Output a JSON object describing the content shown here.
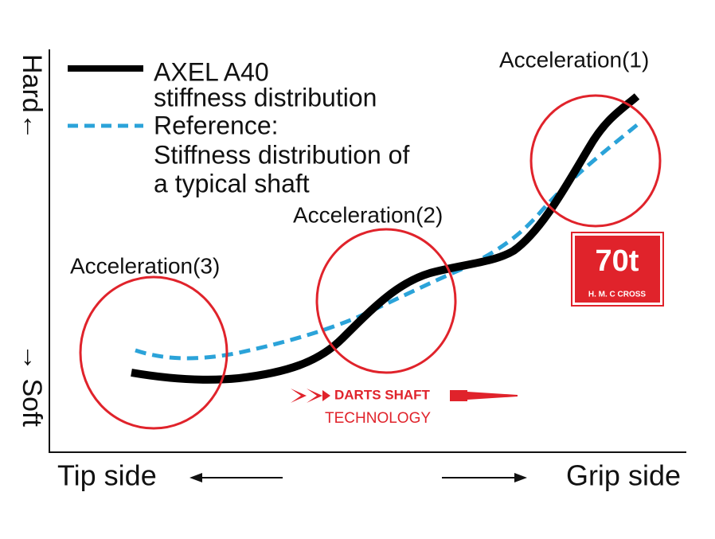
{
  "axis": {
    "y_top": "Hard←",
    "y_bottom": "→ Soft",
    "x_left": "Tip side",
    "x_right": "Grip side"
  },
  "legend": {
    "items": [
      {
        "lines": [
          "AXEL A40",
          "stiffness distribution"
        ]
      },
      {
        "lines": [
          "Reference:",
          "Stiffness distribution of",
          "a typical shaft"
        ]
      }
    ]
  },
  "annotations": [
    "Acceleration(1)",
    "Acceleration(2)",
    "Acceleration(3)"
  ],
  "badge": {
    "title": "70t",
    "subtitle": "H. M. C CROSS"
  },
  "logo": {
    "line1": "DARTS SHAFT",
    "line2": "TECHNOLOGY"
  }
}
